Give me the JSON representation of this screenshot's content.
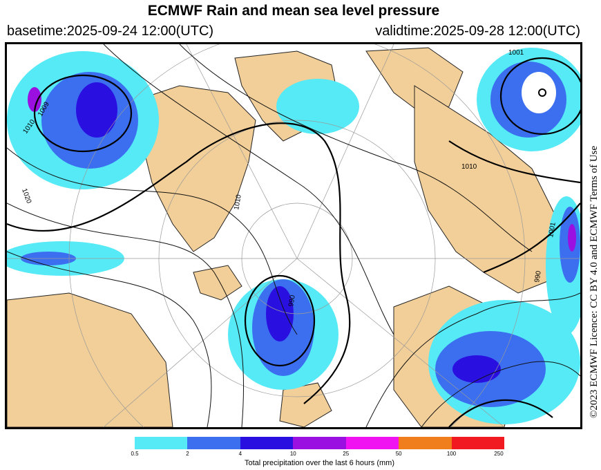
{
  "header": {
    "title": "ECMWF Rain and mean sea level pressure",
    "basetime": "basetime:2025-09-24 12:00(UTC)",
    "validtime": "validtime:2025-09-28 12:00(UTC)"
  },
  "licence_text": "©2023 ECMWF Licence: CC BY 4.0 and ECMWF Terms of Use",
  "map": {
    "isobar_labels": [
      "1009",
      "1010",
      "1020",
      "1010",
      "1001",
      "1010",
      "1001",
      "990",
      "990"
    ]
  },
  "colorbar": {
    "ticks": [
      "0.5",
      "2",
      "4",
      "10",
      "25",
      "50",
      "100",
      "250"
    ],
    "colors": [
      "#55eaf5",
      "#3b6ff0",
      "#2a10e0",
      "#9a10e0",
      "#f012f0",
      "#f07e1c",
      "#f01a20"
    ],
    "label": "Total precipitation over the last 6 hours (mm)"
  }
}
